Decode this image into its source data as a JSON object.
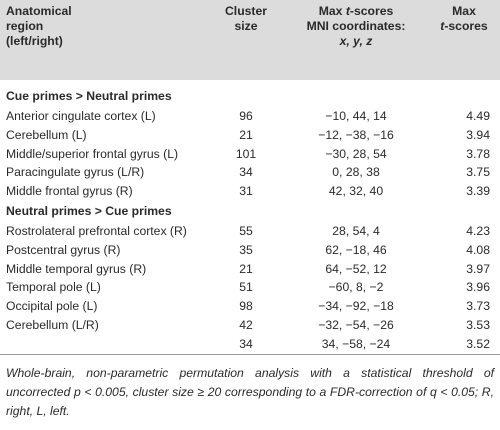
{
  "headers": {
    "region": [
      "Anatomical",
      "region",
      "(left/right)"
    ],
    "cluster": [
      "Cluster",
      "size"
    ],
    "coords_line1_prefix": "Max ",
    "coords_line1_italic": "t",
    "coords_line1_suffix": "-scores",
    "coords_line2": "MNI coordinates:",
    "coords_line3": "x, y, z",
    "max_line1": "Max",
    "max_line2_italic": "t",
    "max_line2_suffix": "-scores"
  },
  "groups": [
    {
      "title": "Cue primes > Neutral primes",
      "rows": [
        {
          "region": "Anterior cingulate cortex (L)",
          "size": "96",
          "coords": "−10, 44, 14",
          "t": "4.49"
        },
        {
          "region": "Cerebellum (L)",
          "size": "21",
          "coords": "−12, −38, −16",
          "t": "3.94"
        },
        {
          "region": "Middle/superior frontal gyrus (L)",
          "size": "101",
          "coords": "−30, 28, 54",
          "t": "3.78"
        },
        {
          "region": "Paracingulate gyrus (L/R)",
          "size": "34",
          "coords": "0, 28, 38",
          "t": "3.75"
        },
        {
          "region": "Middle frontal gyrus (R)",
          "size": "31",
          "coords": "42, 32, 40",
          "t": "3.39"
        }
      ]
    },
    {
      "title": "Neutral primes > Cue primes",
      "rows": [
        {
          "region": "Rostrolateral prefrontal cortex (R)",
          "size": "55",
          "coords": "28, 54, 4",
          "t": "4.23"
        },
        {
          "region": "Postcentral gyrus (R)",
          "size": "35",
          "coords": "62, −18, 46",
          "t": "4.08"
        },
        {
          "region": "Middle temporal gyrus (R)",
          "size": "21",
          "coords": "64, −52, 12",
          "t": "3.97"
        },
        {
          "region": "Temporal pole (L)",
          "size": "51",
          "coords": "−60, 8, −2",
          "t": "3.96"
        },
        {
          "region": "Occipital pole (L)",
          "size": "98",
          "coords": "−34, −92, −18",
          "t": "3.73"
        },
        {
          "region": "Cerebellum (L/R)",
          "size": "42",
          "coords": "−32, −54, −26",
          "t": "3.53"
        },
        {
          "region": "",
          "size": "34",
          "coords": "34, −58, −24",
          "t": "3.52"
        }
      ]
    }
  ],
  "footnote": "Whole-brain, non-parametric permutation analysis with a statistical threshold of uncorrected p < 0.005, cluster size ≥ 20 corresponding to a FDR-correction of q < 0.05; R, right, L, left."
}
